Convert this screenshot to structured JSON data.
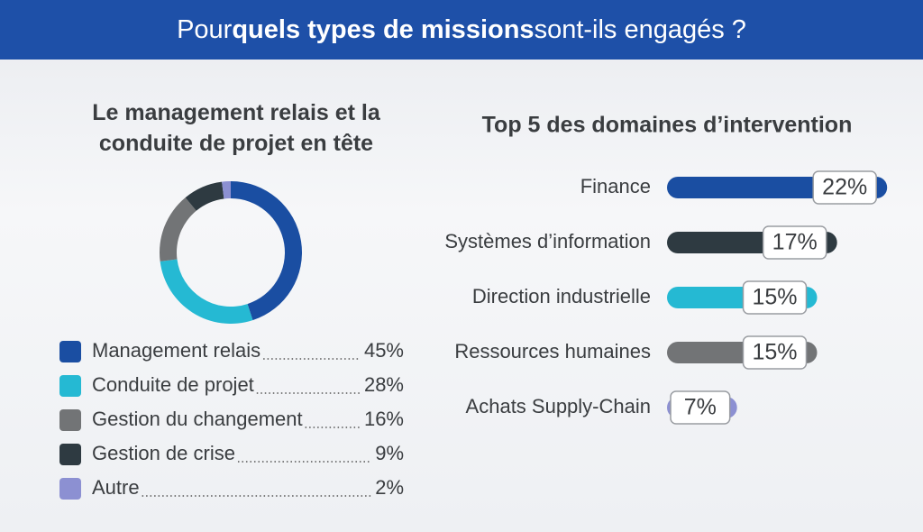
{
  "header": {
    "title_parts": [
      "Pour",
      "quels types de missions",
      "sont-ils engagés ?"
    ]
  },
  "chart_data": [
    {
      "type": "donut",
      "title": "Le management relais et la conduite de projet en tête",
      "categories": [
        "Management relais",
        "Conduite de projet",
        "Gestion du changement",
        "Gestion de crise",
        "Autre"
      ],
      "values": [
        45,
        28,
        16,
        9,
        2
      ],
      "value_labels": [
        "45%",
        "28%",
        "16%",
        "9%",
        "2%"
      ],
      "colors": [
        "#1a4ea2",
        "#25b9d3",
        "#727476",
        "#2e3a41",
        "#8c90d2"
      ]
    },
    {
      "type": "hbar",
      "title": "Top 5 des domaines d’intervention",
      "categories": [
        "Finance",
        "Systèmes d’information",
        "Direction industrielle",
        "Ressources humaines",
        "Achats Supply-Chain"
      ],
      "values": [
        22,
        17,
        15,
        15,
        7
      ],
      "value_labels": [
        "22%",
        "17%",
        "15%",
        "15%",
        "7%"
      ],
      "colors": [
        "#1a4ea2",
        "#2e3a41",
        "#25b9d3",
        "#727476",
        "#8c90d2"
      ]
    }
  ]
}
